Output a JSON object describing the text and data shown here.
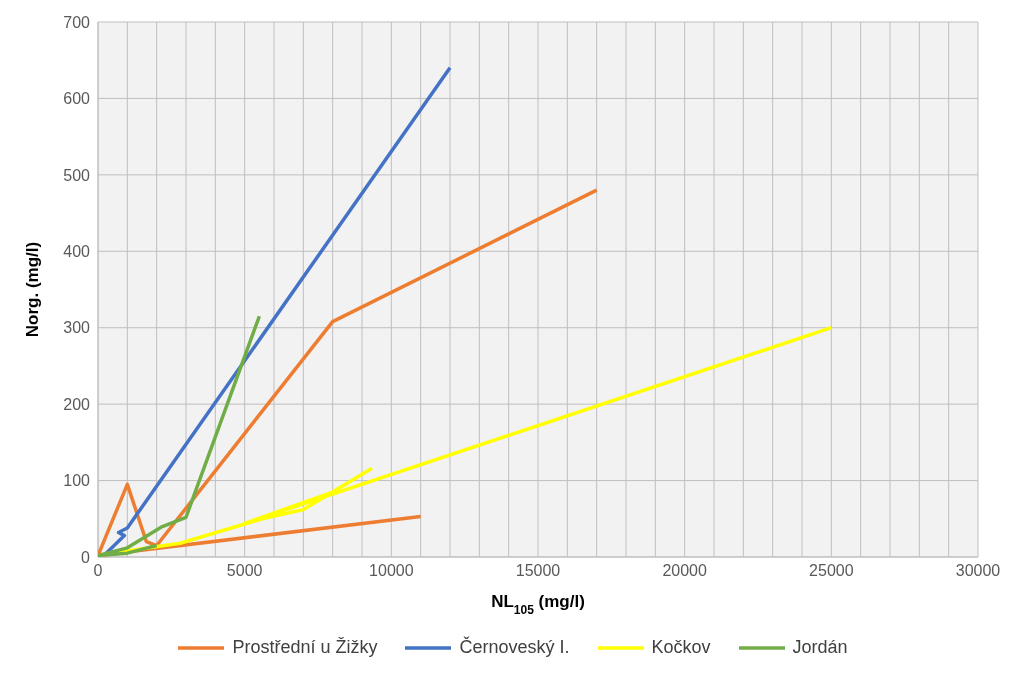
{
  "chart_data": {
    "type": "line",
    "xlabel": "NL$_{105}$ (mg/l)",
    "ylabel": "Norg. (mg/l)",
    "xlim": [
      0,
      30000
    ],
    "xticks": [
      0,
      5000,
      10000,
      15000,
      20000,
      25000,
      30000
    ],
    "ylim": [
      0,
      700
    ],
    "yticks": [
      0,
      100,
      200,
      300,
      400,
      500,
      600,
      700
    ],
    "grid": true,
    "legend": "bottom",
    "marker": "none",
    "line_style": "solid",
    "series": [
      {
        "name": "Prostřední u Žižky",
        "color": "#ed7d31",
        "x": [
          11000,
          0,
          1000,
          1650,
          2000,
          8000,
          17000
        ],
        "values": [
          53,
          2,
          95,
          20,
          15,
          308,
          480
        ]
      },
      {
        "name": "Černoveský I.",
        "color": "#4472c4",
        "x": [
          200,
          900,
          700,
          1000,
          12000
        ],
        "values": [
          2,
          28,
          32,
          38,
          640
        ]
      },
      {
        "name": "Kočkov",
        "color": "#ffff00",
        "x": [
          100,
          2800,
          5600,
          7000,
          9300,
          8000,
          5000,
          25000
        ],
        "values": [
          3,
          18,
          50,
          62,
          115,
          85,
          44,
          300
        ]
      },
      {
        "name": "Jordán",
        "color": "#70ad47",
        "x": [
          2000,
          1000,
          0,
          1000,
          2150,
          3000,
          5500
        ],
        "values": [
          15,
          5,
          2,
          12,
          39,
          52,
          315
        ]
      }
    ]
  }
}
